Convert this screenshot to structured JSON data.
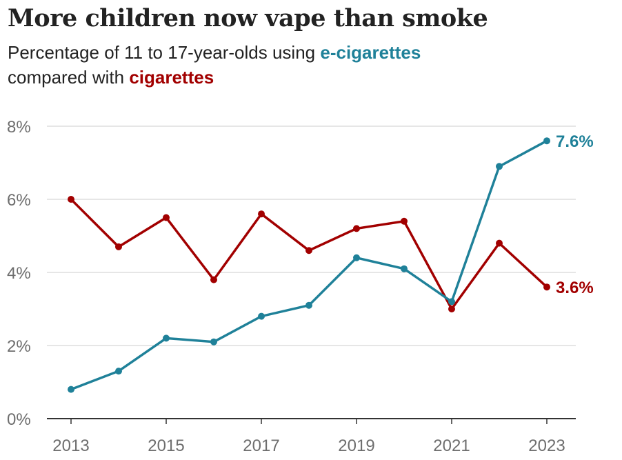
{
  "header": {
    "title": "More children now vape than smoke",
    "subtitle_part1": "Percentage of 11 to 17-year-olds using ",
    "subtitle_ecig": "e-cigarettes",
    "subtitle_part2": "compared with ",
    "subtitle_cig": "cigarettes"
  },
  "colors": {
    "ecig": "#1f8199",
    "cig": "#a20000",
    "grid": "#cccccc",
    "axis": "#333333",
    "tick_text": "#6e6e6e"
  },
  "chart_data": {
    "type": "line",
    "title": "More children now vape than smoke",
    "subtitle": "Percentage of 11 to 17-year-olds using e-cigarettes compared with cigarettes",
    "xlabel": "",
    "ylabel": "",
    "x": [
      2013,
      2014,
      2015,
      2016,
      2017,
      2018,
      2019,
      2020,
      2021,
      2022,
      2023
    ],
    "x_tick_labels": [
      "2013",
      "2015",
      "2017",
      "2019",
      "2021",
      "2023"
    ],
    "y_ticks": [
      0,
      2,
      4,
      6,
      8
    ],
    "y_tick_labels": [
      "0%",
      "2%",
      "4%",
      "6%",
      "8%"
    ],
    "ylim": [
      0,
      8
    ],
    "grid": true,
    "legend": "none (series named in subtitle)",
    "series": [
      {
        "name": "e-cigarettes",
        "color": "#1f8199",
        "values": [
          0.8,
          1.3,
          2.2,
          2.1,
          2.8,
          3.1,
          4.4,
          4.1,
          3.2,
          6.9,
          7.6
        ],
        "end_label": "7.6%"
      },
      {
        "name": "cigarettes",
        "color": "#a20000",
        "values": [
          6.0,
          4.7,
          5.5,
          3.8,
          5.6,
          4.6,
          5.2,
          5.4,
          3.0,
          4.8,
          3.6
        ],
        "end_label": "3.6%"
      }
    ]
  }
}
